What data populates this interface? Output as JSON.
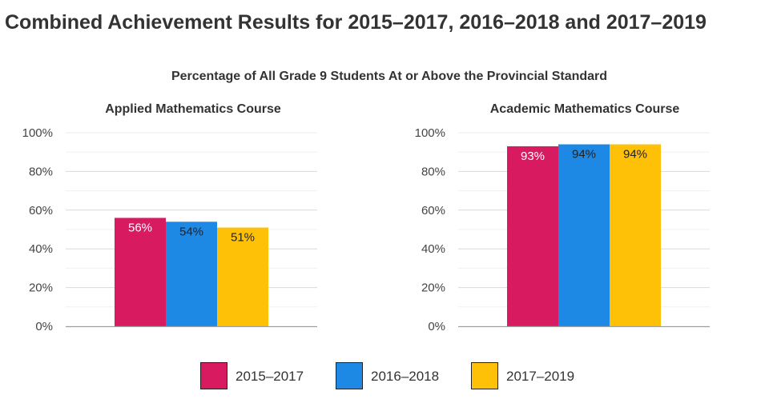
{
  "page": {
    "title": "Combined Achievement Results for 2015–2017, 2016–2018 and 2017–2019"
  },
  "colors": {
    "series": [
      "#d81b60",
      "#1e88e5",
      "#ffc107"
    ],
    "grid": "#e0e0e0",
    "axis": "#9e9e9e",
    "text": "#333333"
  },
  "chart_data": [
    {
      "type": "bar",
      "title": "Percentage of All Grade 9 Students At or Above the Provincial Standard",
      "subtitle": "Applied Mathematics Course",
      "categories": [
        ""
      ],
      "series": [
        {
          "name": "2015–2017",
          "values": [
            56
          ],
          "label": "56%",
          "label_color": "#ffffff"
        },
        {
          "name": "2016–2018",
          "values": [
            54
          ],
          "label": "54%",
          "label_color": "#222222"
        },
        {
          "name": "2017–2019",
          "values": [
            51
          ],
          "label": "51%",
          "label_color": "#222222"
        }
      ],
      "ylim": [
        0,
        100
      ],
      "yticks": [
        "0%",
        "20%",
        "40%",
        "60%",
        "80%",
        "100%"
      ],
      "grid": true,
      "legend": "bottom-center"
    },
    {
      "type": "bar",
      "title": "Percentage of All Grade 9 Students At or Above the Provincial Standard",
      "subtitle": "Academic Mathematics Course",
      "categories": [
        ""
      ],
      "series": [
        {
          "name": "2015–2017",
          "values": [
            93
          ],
          "label": "93%",
          "label_color": "#ffffff"
        },
        {
          "name": "2016–2018",
          "values": [
            94
          ],
          "label": "94%",
          "label_color": "#222222"
        },
        {
          "name": "2017–2019",
          "values": [
            94
          ],
          "label": "94%",
          "label_color": "#222222"
        }
      ],
      "ylim": [
        0,
        100
      ],
      "yticks": [
        "0%",
        "20%",
        "40%",
        "60%",
        "80%",
        "100%"
      ],
      "grid": true,
      "legend": "bottom-center"
    }
  ],
  "legend": {
    "items": [
      {
        "label": "2015–2017"
      },
      {
        "label": "2016–2018"
      },
      {
        "label": "2017–2019"
      }
    ]
  }
}
